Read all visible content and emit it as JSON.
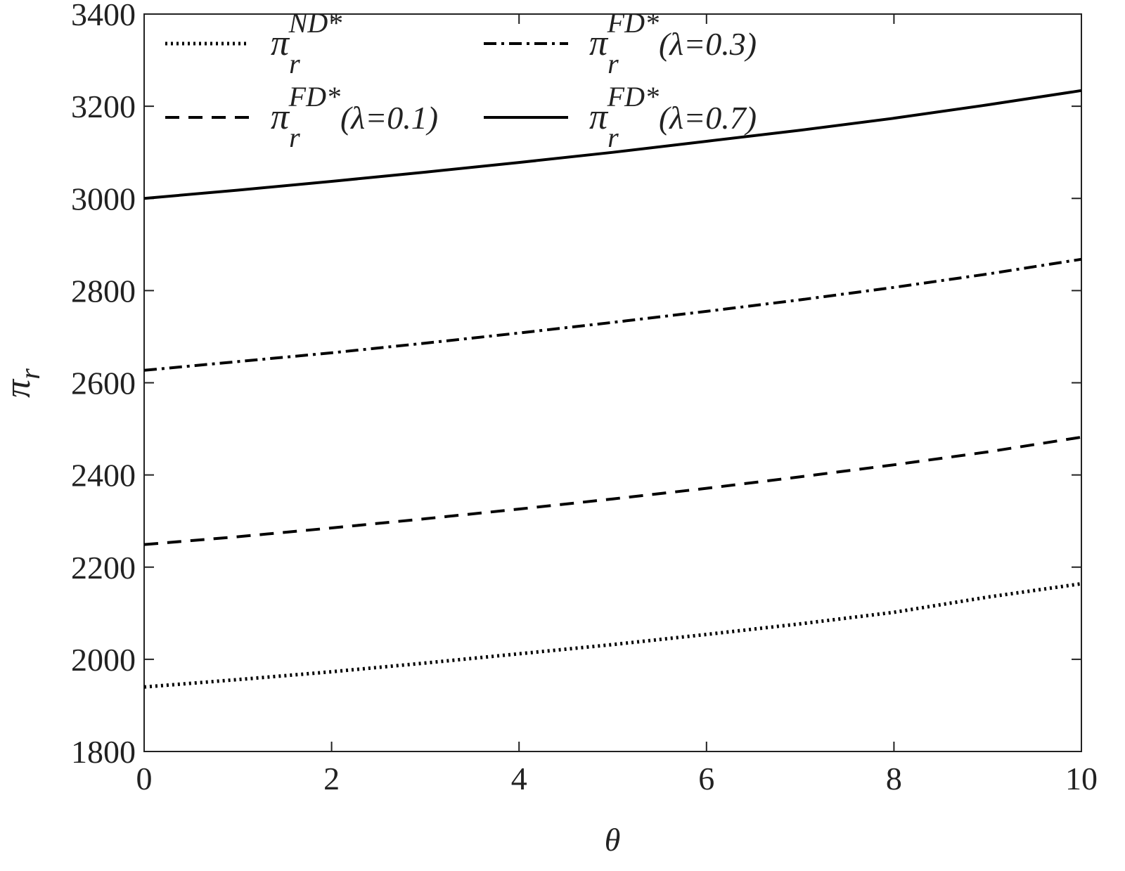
{
  "chart_data": {
    "type": "line",
    "xlabel": "θ",
    "ylabel": {
      "base": "π",
      "sub": "r"
    },
    "x": [
      0,
      1,
      2,
      3,
      4,
      5,
      6,
      7,
      8,
      9,
      10
    ],
    "xlim": [
      0,
      10
    ],
    "xticks": [
      0,
      2,
      4,
      6,
      8,
      10
    ],
    "ylim": [
      1800,
      3400
    ],
    "yticks": [
      1800,
      2000,
      2200,
      2400,
      2600,
      2800,
      3000,
      3200,
      3400
    ],
    "series": [
      {
        "name": {
          "base": "π",
          "sub": "r",
          "sup": "ND*"
        },
        "color": "#000000",
        "dash": "dotted",
        "values": [
          1940,
          1956,
          1973,
          1992,
          2012,
          2032,
          2054,
          2077,
          2102,
          2135,
          2164
        ]
      },
      {
        "name": {
          "base": "π",
          "sub": "r",
          "sup": "FD*",
          "suffix": "(λ=0.3)"
        },
        "color": "#000000",
        "dash": "dashdot",
        "values": [
          2627,
          2646,
          2665,
          2686,
          2708,
          2731,
          2755,
          2780,
          2807,
          2836,
          2868
        ]
      },
      {
        "name": {
          "base": "π",
          "sub": "r",
          "sup": "FD*",
          "suffix": "(λ=0.1)"
        },
        "color": "#000000",
        "dash": "dashed",
        "values": [
          2249,
          2266,
          2285,
          2305,
          2326,
          2348,
          2371,
          2396,
          2422,
          2450,
          2482
        ]
      },
      {
        "name": {
          "base": "π",
          "sub": "r",
          "sup": "FD*",
          "suffix": "(λ=0.7)"
        },
        "color": "#000000",
        "dash": "solid",
        "values": [
          3000,
          3018,
          3037,
          3057,
          3078,
          3100,
          3124,
          3148,
          3174,
          3203,
          3234
        ]
      }
    ]
  }
}
